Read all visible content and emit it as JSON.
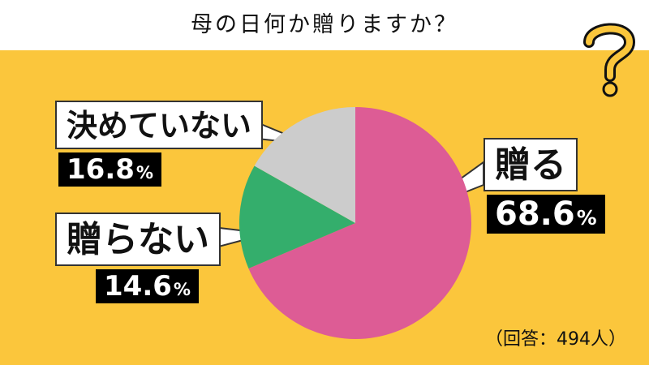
{
  "header": {
    "title": "母の日何か贈りますか？"
  },
  "chart_data": {
    "type": "pie",
    "title": "母の日何か贈りますか？",
    "slices": [
      {
        "label": "贈る",
        "value": 68.6,
        "value_text": "68.6",
        "unit": "%",
        "color": "#dd5c95"
      },
      {
        "label": "贈らない",
        "value": 14.6,
        "value_text": "14.6",
        "unit": "%",
        "color": "#34ae6c"
      },
      {
        "label": "決めていない",
        "value": 16.8,
        "value_text": "16.8",
        "unit": "%",
        "color": "#cccccc"
      }
    ],
    "start_angle_deg": 0,
    "direction": "clockwise",
    "note": "（回答：494人）"
  },
  "decoration": {
    "question_mark_icon": "question-mark-icon",
    "question_mark_color": "#fbc63c"
  }
}
